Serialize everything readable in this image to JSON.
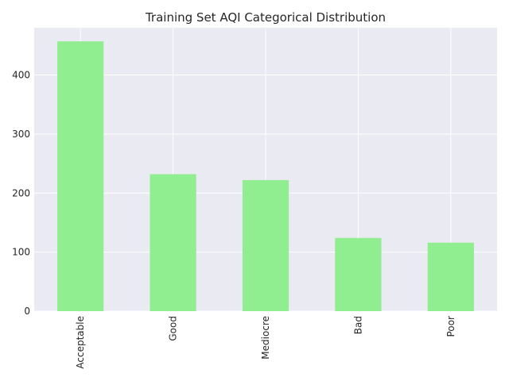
{
  "chart_data": {
    "type": "bar",
    "title": "Training Set AQI Categorical Distribution",
    "categories": [
      "Acceptable",
      "Good",
      "Mediocre",
      "Bad",
      "Poor"
    ],
    "values": [
      457,
      232,
      222,
      124,
      116
    ],
    "xlabel": "",
    "ylabel": "",
    "ylim": [
      0,
      480
    ],
    "yticks": [
      0,
      100,
      200,
      300,
      400
    ],
    "grid": true,
    "colors": {
      "bar": "#90ee90",
      "background": "#eaeaf2",
      "grid": "#ffffff",
      "text": "#262626"
    }
  }
}
